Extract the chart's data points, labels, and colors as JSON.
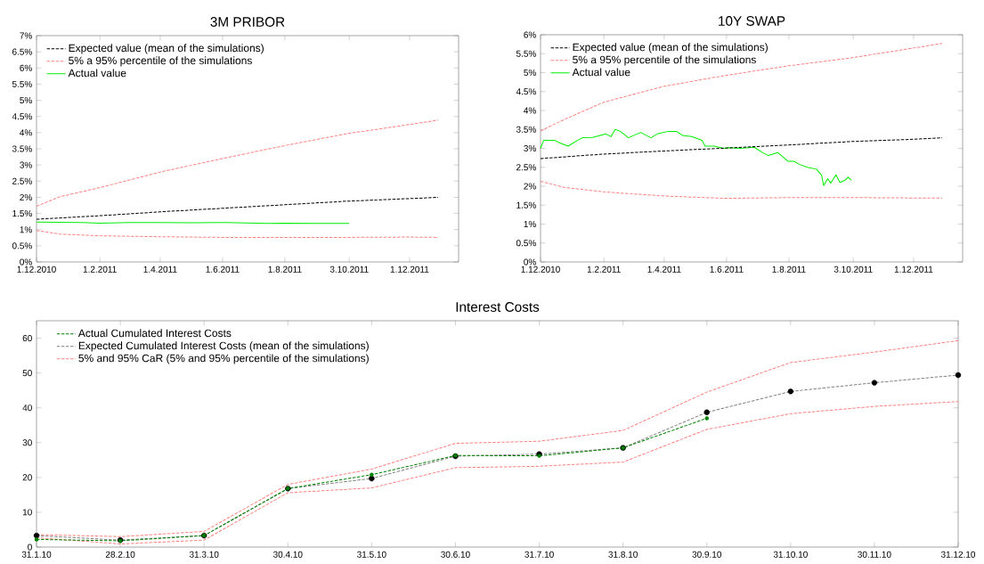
{
  "chart_data": [
    {
      "type": "line",
      "title": "3M PRIBOR",
      "legend": "top left",
      "xlim": [
        "2010-12-01",
        "2012-01-18"
      ],
      "xticks": [
        {
          "value": "2010-12-01",
          "label": "1.12.2010"
        },
        {
          "value": "2011-02-01",
          "label": "1.2.2011"
        },
        {
          "value": "2011-04-01",
          "label": "1.4.2011"
        },
        {
          "value": "2011-06-01",
          "label": "1.6.2011"
        },
        {
          "value": "2011-08-01",
          "label": "1.8.2011"
        },
        {
          "value": "2011-10-03",
          "label": "3.10.2011"
        },
        {
          "value": "2011-12-01",
          "label": "1.12.2011"
        }
      ],
      "ylim": [
        0,
        7
      ],
      "yticks": [
        {
          "value": 0,
          "label": "0%"
        },
        {
          "value": 0.5,
          "label": "0.5%"
        },
        {
          "value": 1,
          "label": "1%"
        },
        {
          "value": 1.5,
          "label": "1.5%"
        },
        {
          "value": 2,
          "label": "2%"
        },
        {
          "value": 2.5,
          "label": "2.5%"
        },
        {
          "value": 3,
          "label": "3%"
        },
        {
          "value": 3.5,
          "label": "3.5%"
        },
        {
          "value": 4,
          "label": "4%"
        },
        {
          "value": 4.5,
          "label": "4.5%"
        },
        {
          "value": 5,
          "label": "5%"
        },
        {
          "value": 5.5,
          "label": "5.5%"
        },
        {
          "value": 6,
          "label": "6%"
        },
        {
          "value": 6.5,
          "label": "6.5%"
        },
        {
          "value": 7,
          "label": "7%"
        }
      ],
      "series": [
        {
          "name": "Expected value (mean of the simulations)",
          "color": "#000000",
          "line_style": "dashed",
          "x": [
            "2010-12-01",
            "2011-02-01",
            "2011-04-01",
            "2011-06-01",
            "2011-08-01",
            "2011-10-01",
            "2011-12-01",
            "2011-12-29"
          ],
          "values": [
            1.32,
            1.43,
            1.55,
            1.66,
            1.77,
            1.88,
            1.96,
            2.0
          ]
        },
        {
          "name": "5% a 95% percentile of the simulations",
          "color": "#ff8080",
          "line_style": "dashed",
          "x": [
            "2010-12-01",
            "2010-12-24",
            "2011-02-01",
            "2011-04-01",
            "2011-06-01",
            "2011-08-01",
            "2011-10-01",
            "2011-12-01",
            "2011-12-29"
          ],
          "values": [
            1.72,
            2.02,
            2.3,
            2.78,
            3.2,
            3.6,
            3.97,
            4.25,
            4.39
          ]
        },
        {
          "color": "#ff8080",
          "line_style": "dashed",
          "x": [
            "2010-12-01",
            "2010-12-24",
            "2011-02-01",
            "2011-04-01",
            "2011-06-01",
            "2011-08-01",
            "2011-10-01",
            "2011-12-01",
            "2011-12-29"
          ],
          "values": [
            0.97,
            0.86,
            0.81,
            0.78,
            0.76,
            0.76,
            0.76,
            0.77,
            0.76
          ]
        },
        {
          "name": "Actual value",
          "color": "#00ee00",
          "line_style": "solid",
          "x": [
            "2010-12-01",
            "2011-01-15",
            "2011-02-01",
            "2011-03-01",
            "2011-04-01",
            "2011-05-01",
            "2011-06-01",
            "2011-07-15",
            "2011-08-01",
            "2011-09-01",
            "2011-10-03"
          ],
          "values": [
            1.23,
            1.22,
            1.2,
            1.22,
            1.22,
            1.21,
            1.22,
            1.19,
            1.2,
            1.19,
            1.19
          ]
        }
      ]
    },
    {
      "type": "line",
      "title": "10Y SWAP",
      "legend": "top left",
      "xlim": [
        "2010-12-01",
        "2012-01-18"
      ],
      "xticks": [
        {
          "value": "2010-12-01",
          "label": "1.12.2010"
        },
        {
          "value": "2011-02-01",
          "label": "1.2.2011"
        },
        {
          "value": "2011-04-01",
          "label": "1.4.2011"
        },
        {
          "value": "2011-06-01",
          "label": "1.6.2011"
        },
        {
          "value": "2011-08-01",
          "label": "1.8.2011"
        },
        {
          "value": "2011-10-03",
          "label": "3.10.2011"
        },
        {
          "value": "2011-12-01",
          "label": "1.12.2011"
        }
      ],
      "ylim": [
        0,
        6
      ],
      "yticks": [
        {
          "value": 0,
          "label": "0%"
        },
        {
          "value": 0.5,
          "label": "0.5%"
        },
        {
          "value": 1,
          "label": "1%"
        },
        {
          "value": 1.5,
          "label": "1.5%"
        },
        {
          "value": 2,
          "label": "2%"
        },
        {
          "value": 2.5,
          "label": "2.5%"
        },
        {
          "value": 3,
          "label": "3%"
        },
        {
          "value": 3.5,
          "label": "3.5%"
        },
        {
          "value": 4,
          "label": "4%"
        },
        {
          "value": 4.5,
          "label": "4.5%"
        },
        {
          "value": 5,
          "label": "5%"
        },
        {
          "value": 5.5,
          "label": "5.5%"
        },
        {
          "value": 6,
          "label": "6%"
        }
      ],
      "series": [
        {
          "name": "Expected value (mean of the simulations)",
          "color": "#000000",
          "line_style": "dashed",
          "x": [
            "2010-12-01",
            "2011-02-01",
            "2011-04-01",
            "2011-06-01",
            "2011-08-01",
            "2011-10-01",
            "2011-12-01",
            "2011-12-29"
          ],
          "values": [
            2.73,
            2.85,
            2.93,
            3.01,
            3.09,
            3.18,
            3.24,
            3.28
          ]
        },
        {
          "name": "5% a 95% percentile of the simulations",
          "color": "#ff8080",
          "line_style": "dashed",
          "x": [
            "2010-12-01",
            "2010-12-24",
            "2011-02-01",
            "2011-04-01",
            "2011-06-01",
            "2011-08-01",
            "2011-10-01",
            "2011-12-01",
            "2011-12-29"
          ],
          "values": [
            3.46,
            3.76,
            4.22,
            4.64,
            4.93,
            5.18,
            5.39,
            5.65,
            5.77
          ]
        },
        {
          "color": "#ff8080",
          "line_style": "dashed",
          "x": [
            "2010-12-01",
            "2010-12-24",
            "2011-02-01",
            "2011-04-01",
            "2011-06-01",
            "2011-08-01",
            "2011-10-01",
            "2011-12-01",
            "2011-12-29"
          ],
          "values": [
            2.13,
            1.97,
            1.85,
            1.74,
            1.68,
            1.7,
            1.7,
            1.69,
            1.69
          ]
        },
        {
          "name": "Actual value",
          "color": "#00ee00",
          "line_style": "solid",
          "x": [
            "2010-12-01",
            "2010-12-04",
            "2010-12-15",
            "2010-12-21",
            "2010-12-28",
            "2011-01-06",
            "2011-01-11",
            "2011-01-21",
            "2011-02-03",
            "2011-02-08",
            "2011-02-12",
            "2011-02-17",
            "2011-02-25",
            "2011-03-09",
            "2011-03-19",
            "2011-03-26",
            "2011-04-05",
            "2011-04-13",
            "2011-04-19",
            "2011-04-28",
            "2011-05-08",
            "2011-05-11",
            "2011-05-20",
            "2011-05-29",
            "2011-06-03",
            "2011-06-14",
            "2011-06-28",
            "2011-07-06",
            "2011-07-12",
            "2011-07-21",
            "2011-07-31",
            "2011-08-06",
            "2011-08-11",
            "2011-08-19",
            "2011-08-28",
            "2011-09-02",
            "2011-09-04",
            "2011-09-08",
            "2011-09-11",
            "2011-09-16",
            "2011-09-20",
            "2011-09-25",
            "2011-09-28",
            "2011-10-01"
          ],
          "values": [
            3.0,
            3.21,
            3.21,
            3.13,
            3.06,
            3.21,
            3.28,
            3.29,
            3.38,
            3.31,
            3.5,
            3.45,
            3.28,
            3.42,
            3.28,
            3.39,
            3.45,
            3.45,
            3.34,
            3.31,
            3.21,
            3.06,
            3.06,
            3.0,
            3.02,
            3.0,
            3.03,
            2.89,
            2.81,
            2.89,
            2.66,
            2.66,
            2.58,
            2.5,
            2.45,
            2.29,
            2.02,
            2.2,
            2.08,
            2.3,
            2.1,
            2.16,
            2.24,
            2.16
          ]
        }
      ]
    },
    {
      "type": "line",
      "title": "Interest Costs",
      "legend": "top left",
      "categories": [
        "31.1.10",
        "28.2.10",
        "31.3.10",
        "30.4.10",
        "31.5.10",
        "30.6.10",
        "31.7.10",
        "31.8.10",
        "30.9.10",
        "31.10.10",
        "30.11.10",
        "31.12.10"
      ],
      "ylim": [
        0,
        65
      ],
      "yticks": [
        0,
        10,
        20,
        30,
        40,
        50,
        60
      ],
      "series": [
        {
          "name": "Actual Cumulated Interest Costs",
          "color": "#008000",
          "line_style": "dashed",
          "marker": "circle",
          "values": [
            2.2,
            1.8,
            3.3,
            16.8,
            20.8,
            26.3,
            26.2,
            28.5,
            37.0,
            null,
            null,
            null
          ]
        },
        {
          "name": "Expected Cumulated Interest Costs (mean of the simulations)",
          "color": "#808080",
          "line_style": "dashed",
          "marker": "circle",
          "colors": [
            "#000000",
            "#000000",
            "#000000",
            "#000000",
            "#000000",
            "#000000",
            "#000000",
            "#000000",
            "#000000",
            "#000000",
            "#000000",
            "#000000"
          ],
          "values": [
            3.3,
            2.0,
            3.3,
            16.8,
            19.7,
            26.1,
            26.7,
            28.5,
            38.7,
            44.7,
            47.2,
            49.4
          ]
        },
        {
          "name": "5% and 95% CaR (5% and 95% percentile of the simulations)",
          "color": "#ff8080",
          "line_style": "dashed",
          "values": [
            3.6,
            3.0,
            4.5,
            18.0,
            22.4,
            29.8,
            30.4,
            33.5,
            44.5,
            53.0,
            56.0,
            59.3
          ]
        },
        {
          "color": "#ff8080",
          "line_style": "dashed",
          "values": [
            2.7,
            0.9,
            2.0,
            15.6,
            17.0,
            22.8,
            23.2,
            24.4,
            33.8,
            38.3,
            40.4,
            41.8
          ]
        }
      ]
    }
  ]
}
